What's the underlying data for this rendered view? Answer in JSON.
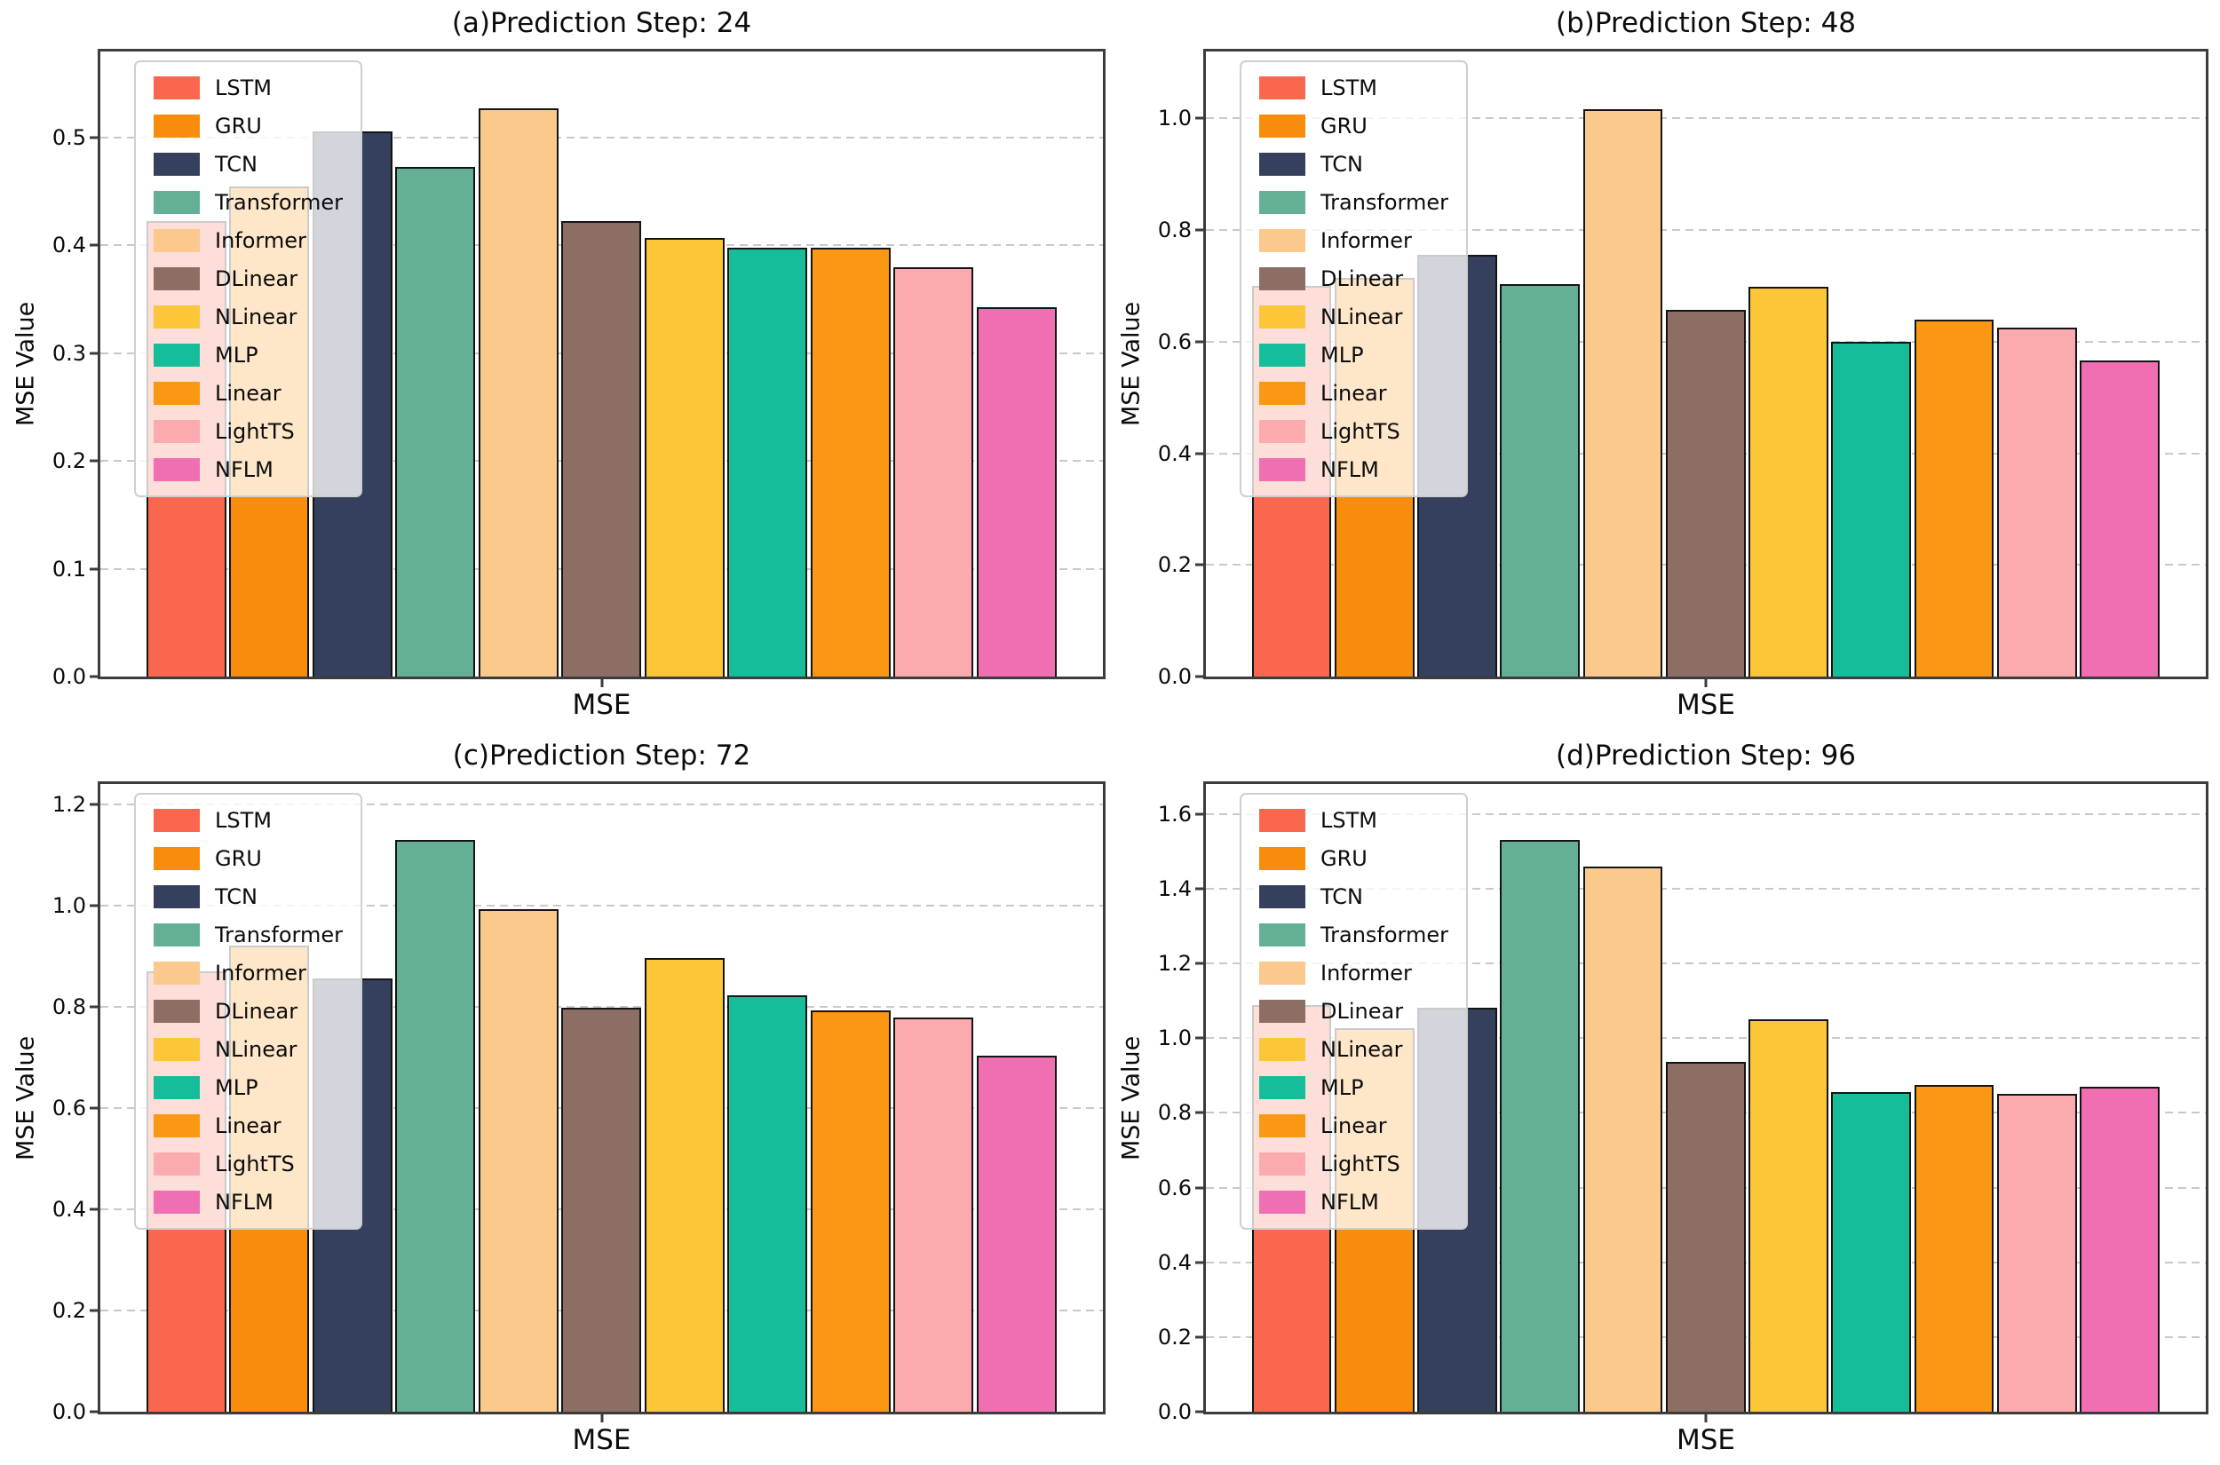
{
  "figure": {
    "background": "#ffffff",
    "grid_color": "#c9c9c9",
    "spine_color": "#3c3c3c",
    "bar_edge_color": "#141414"
  },
  "legend": {
    "entries": [
      {
        "label": "LSTM",
        "color": "#F9684E"
      },
      {
        "label": "GRU",
        "color": "#F88C0C"
      },
      {
        "label": "TCN",
        "color": "#35405D"
      },
      {
        "label": "Transformer",
        "color": "#63B095"
      },
      {
        "label": "Informer",
        "color": "#FAC98B"
      },
      {
        "label": "DLinear",
        "color": "#8C6E64"
      },
      {
        "label": "NLinear",
        "color": "#FBC637"
      },
      {
        "label": "MLP",
        "color": "#16BD9A"
      },
      {
        "label": "Linear",
        "color": "#FA9713"
      },
      {
        "label": "LightTS",
        "color": "#FBABAD"
      },
      {
        "label": "NFLM",
        "color": "#F06FB2"
      }
    ]
  },
  "chart_data": [
    {
      "type": "bar",
      "title": "(a)Prediction Step: 24",
      "xlabel": "MSE",
      "ylabel": "MSE Value",
      "categories": [
        "LSTM",
        "GRU",
        "TCN",
        "Transformer",
        "Informer",
        "DLinear",
        "NLinear",
        "MLP",
        "Linear",
        "LightTS",
        "NFLM"
      ],
      "values": [
        0.423,
        0.455,
        0.506,
        0.473,
        0.527,
        0.423,
        0.407,
        0.398,
        0.398,
        0.38,
        0.343
      ],
      "ylim": [
        0,
        0.58
      ],
      "yticks": [
        0.0,
        0.1,
        0.2,
        0.3,
        0.4,
        0.5
      ],
      "grid": "horizontal-dashed",
      "legend_position": "upper left"
    },
    {
      "type": "bar",
      "title": "(b)Prediction Step: 48",
      "xlabel": "MSE",
      "ylabel": "MSE Value",
      "categories": [
        "LSTM",
        "GRU",
        "TCN",
        "Transformer",
        "Informer",
        "DLinear",
        "NLinear",
        "MLP",
        "Linear",
        "LightTS",
        "NFLM"
      ],
      "values": [
        0.7,
        0.715,
        0.755,
        0.703,
        1.016,
        0.657,
        0.699,
        0.6,
        0.64,
        0.625,
        0.566
      ],
      "ylim": [
        0,
        1.12
      ],
      "yticks": [
        0.0,
        0.2,
        0.4,
        0.6,
        0.8,
        1.0
      ],
      "grid": "horizontal-dashed",
      "legend_position": "upper left"
    },
    {
      "type": "bar",
      "title": "(c)Prediction Step: 72",
      "xlabel": "MSE",
      "ylabel": "MSE Value",
      "categories": [
        "LSTM",
        "GRU",
        "TCN",
        "Transformer",
        "Informer",
        "DLinear",
        "NLinear",
        "MLP",
        "Linear",
        "LightTS",
        "NFLM"
      ],
      "values": [
        0.87,
        0.921,
        0.856,
        1.13,
        0.993,
        0.798,
        0.896,
        0.823,
        0.792,
        0.779,
        0.704
      ],
      "ylim": [
        0,
        1.24
      ],
      "yticks": [
        0.0,
        0.2,
        0.4,
        0.6,
        0.8,
        1.0,
        1.2
      ],
      "grid": "horizontal-dashed",
      "legend_position": "upper left"
    },
    {
      "type": "bar",
      "title": "(d)Prediction Step: 96",
      "xlabel": "MSE",
      "ylabel": "MSE Value",
      "categories": [
        "LSTM",
        "GRU",
        "TCN",
        "Transformer",
        "Informer",
        "DLinear",
        "NLinear",
        "MLP",
        "Linear",
        "LightTS",
        "NFLM"
      ],
      "values": [
        1.088,
        1.026,
        1.082,
        1.53,
        1.458,
        0.937,
        1.051,
        0.855,
        0.875,
        0.851,
        0.87
      ],
      "ylim": [
        0,
        1.68
      ],
      "yticks": [
        0.0,
        0.2,
        0.4,
        0.6,
        0.8,
        1.0,
        1.2,
        1.4,
        1.6
      ],
      "grid": "horizontal-dashed",
      "legend_position": "upper left"
    }
  ]
}
